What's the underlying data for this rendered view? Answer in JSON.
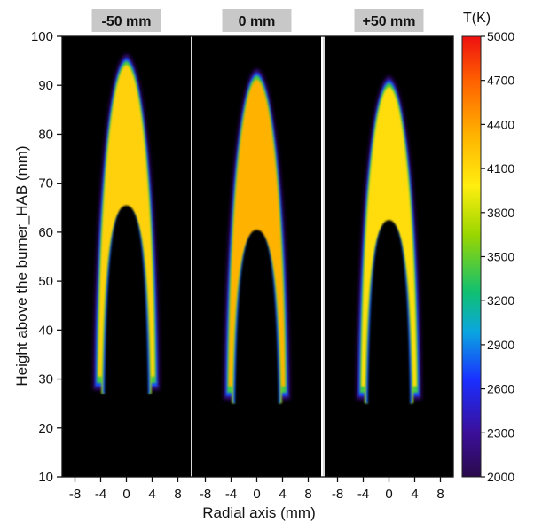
{
  "chart_data": {
    "type": "heatmap",
    "panel_titles": [
      "-50 mm",
      "0 mm",
      "+50 mm"
    ],
    "xlabel": "Radial axis (mm)",
    "ylabel": "Height above the burner_HAB (mm)",
    "xlim": [
      -10,
      10
    ],
    "ylim": [
      10,
      100
    ],
    "x_ticks": [
      -8,
      -4,
      0,
      4,
      8
    ],
    "y_ticks": [
      10,
      20,
      30,
      40,
      50,
      60,
      70,
      80,
      90,
      100
    ],
    "colorbar": {
      "label": "T(K)",
      "range": [
        2000,
        5000
      ],
      "ticks": [
        2000,
        2300,
        2600,
        2900,
        3200,
        3500,
        3800,
        4100,
        4400,
        4700,
        5000
      ],
      "colormap": "rainbow (violet-blue-cyan-green-yellow-orange-red)"
    },
    "background_color": "#000000",
    "panels": [
      {
        "title": "-50 mm",
        "base_height": 29,
        "tip_height": 95,
        "base_half_width": 4.6,
        "inner_height": 65,
        "core_temperature": 4150
      },
      {
        "title": "0 mm",
        "base_height": 27,
        "tip_height": 92,
        "base_half_width": 4.6,
        "inner_height": 60,
        "core_temperature": 4320
      },
      {
        "title": "+50 mm",
        "base_height": 27,
        "tip_height": 90.5,
        "base_half_width": 4.5,
        "inner_height": 62,
        "core_temperature": 4080
      }
    ]
  }
}
